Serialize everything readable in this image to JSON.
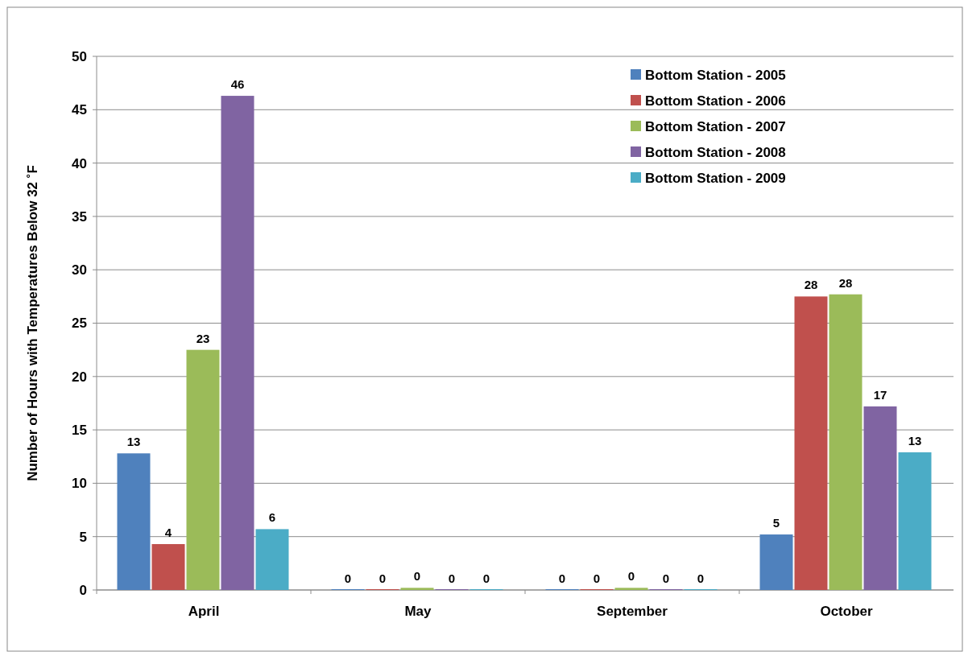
{
  "chart_data": {
    "type": "bar",
    "ylabel": "Number of Hours with Temperatures Below 32 ˚F",
    "categories": [
      "April",
      "May",
      "September",
      "October"
    ],
    "series": [
      {
        "name": "Bottom Station - 2005",
        "color": "#4f81bd",
        "values": [
          12.8,
          0,
          0,
          5.2
        ],
        "value_labels": [
          "13",
          "0",
          "0",
          "5"
        ]
      },
      {
        "name": "Bottom Station - 2006",
        "color": "#c0504d",
        "values": [
          4.3,
          0,
          0,
          27.5
        ],
        "value_labels": [
          "4",
          "0",
          "0",
          "28"
        ]
      },
      {
        "name": "Bottom Station - 2007",
        "color": "#9bbb59",
        "values": [
          22.5,
          0.2,
          0.2,
          27.7
        ],
        "value_labels": [
          "23",
          "0",
          "0",
          "28"
        ]
      },
      {
        "name": "Bottom Station - 2008",
        "color": "#8064a2",
        "values": [
          46.3,
          0,
          0,
          17.2
        ],
        "value_labels": [
          "46",
          "0",
          "0",
          "17"
        ]
      },
      {
        "name": "Bottom Station - 2009",
        "color": "#4bacc6",
        "values": [
          5.7,
          0,
          0,
          12.9
        ],
        "value_labels": [
          "6",
          "0",
          "0",
          "13"
        ]
      }
    ],
    "ylim": [
      0,
      50
    ],
    "yticks": [
      0,
      5,
      10,
      15,
      20,
      25,
      30,
      35,
      40,
      45,
      50
    ],
    "grid": "y",
    "legend": "top right"
  }
}
